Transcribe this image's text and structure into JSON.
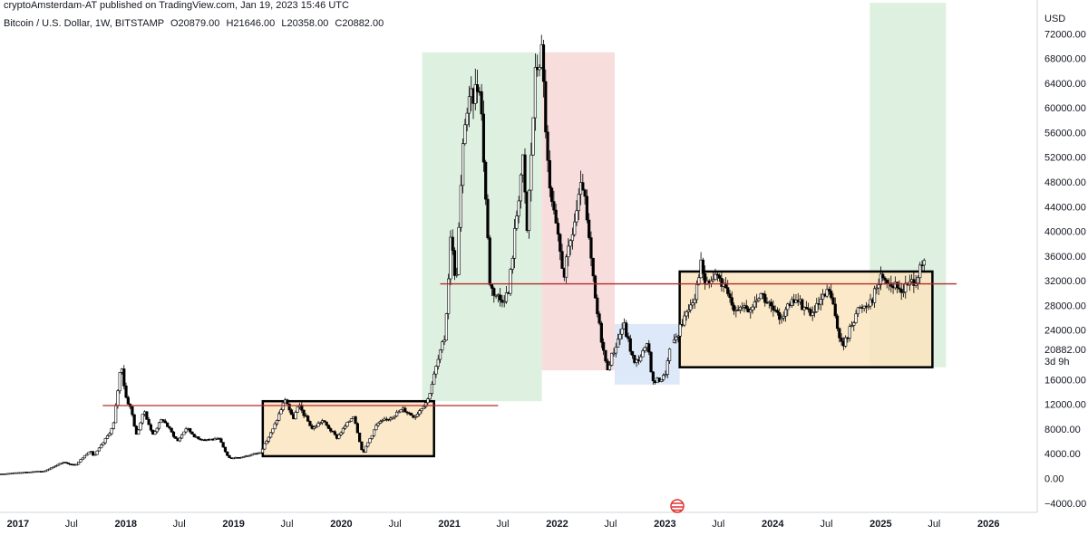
{
  "header": {
    "published": "cryptoAmsterdam-AT published on TradingView.com, Jan 19, 2023 15:46 UTC",
    "symbol": "Bitcoin / U.S. Dollar, 1W, BITSTAMP",
    "open": "O20879.00",
    "high": "H21646.00",
    "low": "L20358.00",
    "close": "C20882.00"
  },
  "chart_data": {
    "type": "candlestick",
    "title": "Bitcoin / U.S. Dollar, 1W, BITSTAMP",
    "y_axis": {
      "unit": "USD",
      "ticks": [
        -4000,
        0,
        4000,
        8000,
        12000,
        16000,
        24000,
        28000,
        32000,
        36000,
        40000,
        44000,
        48000,
        52000,
        56000,
        60000,
        64000,
        68000,
        72000
      ],
      "tick_labels": [
        "−4000.00",
        "0.00",
        "4000.00",
        "8000.00",
        "12000.00",
        "16000.00",
        "24000.00",
        "28000.00",
        "32000.00",
        "36000.00",
        "40000.00",
        "44000.00",
        "48000.00",
        "52000.00",
        "56000.00",
        "60000.00",
        "64000.00",
        "68000.00",
        "72000.00"
      ],
      "range": [
        -5500,
        76000
      ],
      "last_price": 20882,
      "last_price_label": "20882.00",
      "countdown": "3d 9h"
    },
    "x_axis": {
      "range": [
        "2016-11-01",
        "2026-06-15"
      ],
      "ticks": [
        {
          "date": "2017-01-01",
          "label": "2017",
          "year": true
        },
        {
          "date": "2017-07-01",
          "label": "Jul",
          "year": false
        },
        {
          "date": "2018-01-01",
          "label": "2018",
          "year": true
        },
        {
          "date": "2018-07-01",
          "label": "Jul",
          "year": false
        },
        {
          "date": "2019-01-01",
          "label": "2019",
          "year": true
        },
        {
          "date": "2019-07-01",
          "label": "Jul",
          "year": false
        },
        {
          "date": "2020-01-01",
          "label": "2020",
          "year": true
        },
        {
          "date": "2020-07-01",
          "label": "Jul",
          "year": false
        },
        {
          "date": "2021-01-01",
          "label": "2021",
          "year": true
        },
        {
          "date": "2021-07-01",
          "label": "Jul",
          "year": false
        },
        {
          "date": "2022-01-01",
          "label": "2022",
          "year": true
        },
        {
          "date": "2022-07-01",
          "label": "Jul",
          "year": false
        },
        {
          "date": "2023-01-01",
          "label": "2023",
          "year": true
        },
        {
          "date": "2023-07-01",
          "label": "Jul",
          "year": false
        },
        {
          "date": "2024-01-01",
          "label": "2024",
          "year": true
        },
        {
          "date": "2024-07-01",
          "label": "Jul",
          "year": false
        },
        {
          "date": "2025-01-01",
          "label": "2025",
          "year": true
        },
        {
          "date": "2025-07-01",
          "label": "Jul",
          "year": false
        },
        {
          "date": "2026-01-01",
          "label": "2026",
          "year": true
        }
      ]
    },
    "price_path": [
      [
        "2016-11-01",
        700
      ],
      [
        "2017-01-01",
        950
      ],
      [
        "2017-04-01",
        1200
      ],
      [
        "2017-06-01",
        2600
      ],
      [
        "2017-07-15",
        2200
      ],
      [
        "2017-09-01",
        4500
      ],
      [
        "2017-09-15",
        3600
      ],
      [
        "2017-10-20",
        6000
      ],
      [
        "2017-11-20",
        8500
      ],
      [
        "2017-12-17",
        19000
      ],
      [
        "2017-12-30",
        13500
      ],
      [
        "2018-01-20",
        11000
      ],
      [
        "2018-02-06",
        7000
      ],
      [
        "2018-03-05",
        11000
      ],
      [
        "2018-04-01",
        7000
      ],
      [
        "2018-05-05",
        9700
      ],
      [
        "2018-06-25",
        6000
      ],
      [
        "2018-07-25",
        8200
      ],
      [
        "2018-09-01",
        6400
      ],
      [
        "2018-11-14",
        6300
      ],
      [
        "2018-12-15",
        3300
      ],
      [
        "2019-01-30",
        3500
      ],
      [
        "2019-04-01",
        4200
      ],
      [
        "2019-05-15",
        8000
      ],
      [
        "2019-06-26",
        13000
      ],
      [
        "2019-07-20",
        9500
      ],
      [
        "2019-08-10",
        11800
      ],
      [
        "2019-09-25",
        8000
      ],
      [
        "2019-10-28",
        9400
      ],
      [
        "2019-12-17",
        6600
      ],
      [
        "2020-02-12",
        10300
      ],
      [
        "2020-03-13",
        4000
      ],
      [
        "2020-05-01",
        8800
      ],
      [
        "2020-06-01",
        9500
      ],
      [
        "2020-07-28",
        11200
      ],
      [
        "2020-09-05",
        10000
      ],
      [
        "2020-10-20",
        12800
      ],
      [
        "2020-11-20",
        18500
      ],
      [
        "2020-12-17",
        23000
      ],
      [
        "2021-01-08",
        41000
      ],
      [
        "2021-01-22",
        30000
      ],
      [
        "2021-02-21",
        58000
      ],
      [
        "2021-03-13",
        61000
      ],
      [
        "2021-04-14",
        64500
      ],
      [
        "2021-05-19",
        31000
      ],
      [
        "2021-06-22",
        29000
      ],
      [
        "2021-07-20",
        30000
      ],
      [
        "2021-09-06",
        52000
      ],
      [
        "2021-09-21",
        40000
      ],
      [
        "2021-10-20",
        66000
      ],
      [
        "2021-11-10",
        69000
      ],
      [
        "2021-12-04",
        47000
      ],
      [
        "2022-01-24",
        33000
      ],
      [
        "2022-03-28",
        48000
      ],
      [
        "2022-05-12",
        28000
      ],
      [
        "2022-06-18",
        17600
      ],
      [
        "2022-08-14",
        25000
      ],
      [
        "2022-09-20",
        18500
      ],
      [
        "2022-11-05",
        21500
      ],
      [
        "2022-11-21",
        15500
      ],
      [
        "2022-12-31",
        16500
      ],
      [
        "2023-01-19",
        20882
      ]
    ],
    "overlays": {
      "horizontal_lines": [
        {
          "price": 11800,
          "from": "2017-10-15",
          "to": "2021-06-15",
          "color": "#b22b2b"
        },
        {
          "price": 31500,
          "from": "2020-12-01",
          "to": "2025-09-15",
          "color": "#b22b2b"
        }
      ],
      "shaded_zones": [
        {
          "from": "2020-10-01",
          "to": "2021-11-10",
          "low": 12500,
          "high": 69000,
          "color": "#c8e6c9"
        },
        {
          "from": "2021-11-10",
          "to": "2022-07-15",
          "low": 17500,
          "high": 69000,
          "color": "#f4c7c7"
        },
        {
          "from": "2022-07-15",
          "to": "2023-02-20",
          "low": 15200,
          "high": 25000,
          "color": "#c6d9f5"
        },
        {
          "from": "2024-11-25",
          "to": "2025-08-10",
          "low": 18000,
          "high": 77000,
          "color": "#c8e6c9"
        }
      ],
      "range_boxes": [
        {
          "from": "2019-04-10",
          "to": "2020-11-10",
          "low": 3600,
          "high": 12500,
          "color": "#fbe3bb"
        },
        {
          "from": "2023-02-20",
          "to": "2025-06-25",
          "low": 18000,
          "high": 33500,
          "color": "#fbe3bb"
        }
      ],
      "projected_path": [
        [
          "2023-02-01",
          22000
        ],
        [
          "2023-03-15",
          27000
        ],
        [
          "2023-04-15",
          30000
        ],
        [
          "2023-05-01",
          35000
        ],
        [
          "2023-05-20",
          31000
        ],
        [
          "2023-06-25",
          33000
        ],
        [
          "2023-08-20",
          28000
        ],
        [
          "2023-10-15",
          27000
        ],
        [
          "2023-11-20",
          30000
        ],
        [
          "2024-01-20",
          26000
        ],
        [
          "2024-03-20",
          29000
        ],
        [
          "2024-05-15",
          26500
        ],
        [
          "2024-07-10",
          30500
        ],
        [
          "2024-08-25",
          21000
        ],
        [
          "2024-10-10",
          27000
        ],
        [
          "2024-12-01",
          29000
        ],
        [
          "2025-01-05",
          33000
        ],
        [
          "2025-02-15",
          31000
        ],
        [
          "2025-03-15",
          30500
        ],
        [
          "2025-05-01",
          32500
        ],
        [
          "2025-06-01",
          35000
        ]
      ]
    },
    "grid": false
  }
}
